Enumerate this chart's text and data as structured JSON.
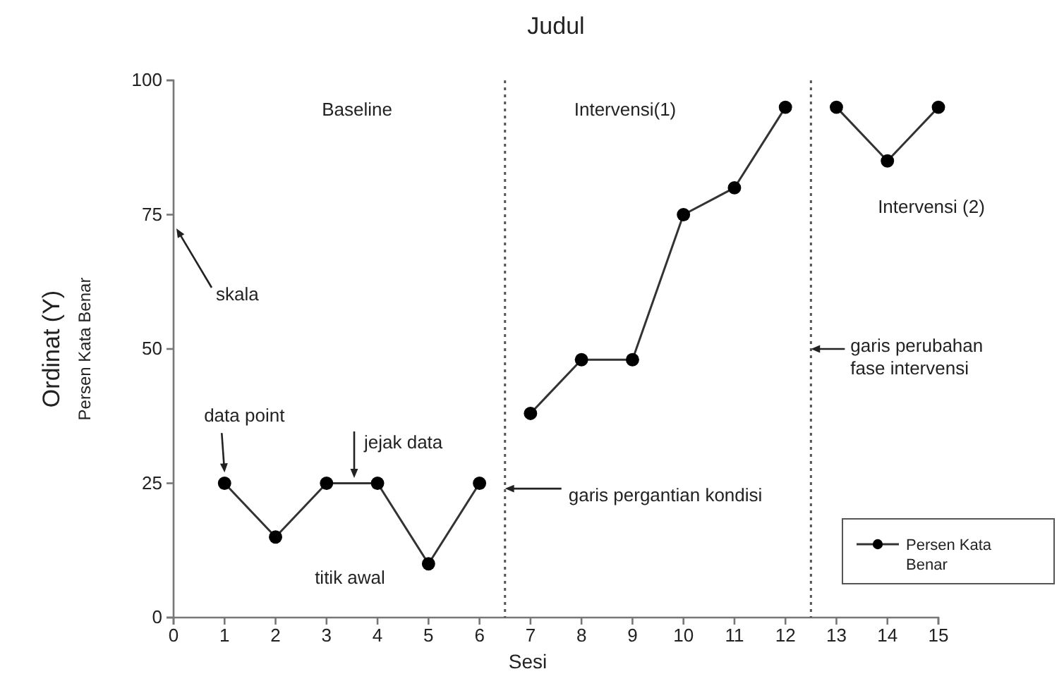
{
  "chart_data": {
    "type": "line",
    "title": "Judul",
    "xlabel": "Sesi",
    "ylabel": "Ordinat (Y)\nPersen Kata Benar",
    "xlim": [
      0,
      15
    ],
    "xticks": [
      0,
      1,
      2,
      3,
      4,
      5,
      6,
      7,
      8,
      9,
      10,
      11,
      12,
      13,
      14,
      15
    ],
    "ylim": [
      0,
      100
    ],
    "yticks": [
      0,
      25,
      50,
      75,
      100
    ],
    "grid": false,
    "legend": "bottom right",
    "marker": "circle",
    "line_style": "solid",
    "series": [
      {
        "name": "Persen Kata Benar",
        "color": "#333333",
        "x": [
          1,
          2,
          3,
          4,
          5,
          6
        ],
        "values": [
          25,
          15,
          25,
          25,
          10,
          25
        ]
      },
      {
        "color": "#333333",
        "x": [
          7,
          8,
          9,
          10,
          11,
          12
        ],
        "values": [
          38,
          48,
          48,
          75,
          80,
          95
        ]
      },
      {
        "color": "#333333",
        "x": [
          13,
          14,
          15
        ],
        "values": [
          95,
          85,
          95
        ]
      }
    ],
    "ref_lines": [
      {
        "axis": "x",
        "value": 6.5,
        "color": "#555555",
        "line_style": "dotted"
      },
      {
        "axis": "x",
        "value": 12.5,
        "color": "#555555",
        "line_style": "dotted"
      }
    ],
    "annotations": [
      "Baseline",
      "Intervensi(1)",
      "Intervensi (2)",
      "skala",
      {
        "text": "data point",
        "x": 1,
        "y": 27
      },
      "jejak data",
      "titik awal",
      {
        "text": "garis pergantian kondisi",
        "x": 6.5,
        "y": 24
      },
      {
        "text": "garis perubahan\nfase intervensi",
        "x": 12.5,
        "y": 50
      }
    ]
  }
}
